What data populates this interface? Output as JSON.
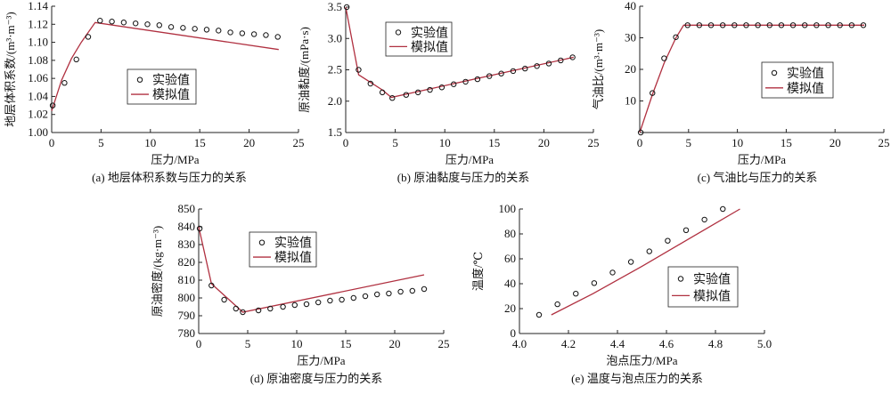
{
  "colors": {
    "sim": "#b03040",
    "exp": "#111111",
    "axis": "#222222"
  },
  "legend_labels": {
    "exp": "实验值",
    "sim": "模拟值"
  },
  "chart_data": [
    {
      "type": "line",
      "caption": "(a) 地层体积系数与压力的关系",
      "xlabel": "压力/MPa",
      "ylabel": "地层体积系数/(m³·m⁻³)",
      "xlim": [
        0,
        25
      ],
      "ylim": [
        1.0,
        1.14
      ],
      "xticks": [
        "0",
        "5",
        "10",
        "15",
        "20",
        "25"
      ],
      "yticks": [
        "1.00",
        "1.02",
        "1.04",
        "1.06",
        "1.08",
        "1.10",
        "1.12",
        "1.14"
      ],
      "legend": "center",
      "series": [
        {
          "name": "实验值",
          "kind": "scatter",
          "x": [
            0.1,
            1.3,
            2.5,
            3.7,
            4.9,
            6.1,
            7.3,
            8.5,
            9.7,
            10.9,
            12.1,
            13.3,
            14.5,
            15.7,
            16.9,
            18.1,
            19.3,
            20.5,
            21.7,
            22.9
          ],
          "y": [
            1.03,
            1.055,
            1.081,
            1.106,
            1.124,
            1.123,
            1.122,
            1.121,
            1.12,
            1.119,
            1.117,
            1.116,
            1.115,
            1.114,
            1.113,
            1.111,
            1.11,
            1.109,
            1.108,
            1.106
          ]
        },
        {
          "name": "模拟值",
          "kind": "line",
          "x": [
            0,
            1,
            2,
            3,
            4.4,
            23
          ],
          "y": [
            1.024,
            1.058,
            1.082,
            1.1,
            1.122,
            1.092
          ]
        }
      ]
    },
    {
      "type": "line",
      "caption": "(b) 原油黏度与压力的关系",
      "xlabel": "压力/MPa",
      "ylabel": "原油黏度/(mPa·s)",
      "xlim": [
        0,
        25
      ],
      "ylim": [
        1.5,
        3.5
      ],
      "xticks": [
        "0",
        "5",
        "10",
        "15",
        "20",
        "25"
      ],
      "yticks": [
        "1.5",
        "2.0",
        "2.5",
        "3.0",
        "3.5"
      ],
      "legend": "upper-left",
      "series": [
        {
          "name": "实验值",
          "kind": "scatter",
          "x": [
            0.1,
            1.3,
            2.5,
            3.7,
            4.7,
            6.1,
            7.3,
            8.5,
            9.7,
            10.9,
            12.1,
            13.3,
            14.5,
            15.7,
            16.9,
            18.1,
            19.3,
            20.5,
            21.7,
            22.9
          ],
          "y": [
            3.5,
            2.5,
            2.28,
            2.14,
            2.05,
            2.1,
            2.14,
            2.18,
            2.22,
            2.27,
            2.31,
            2.35,
            2.4,
            2.44,
            2.48,
            2.52,
            2.56,
            2.6,
            2.65,
            2.7
          ]
        },
        {
          "name": "模拟值",
          "kind": "line",
          "x": [
            0,
            1.3,
            2.5,
            3.7,
            4.6,
            23
          ],
          "y": [
            3.5,
            2.42,
            2.3,
            2.18,
            2.06,
            2.7
          ]
        }
      ]
    },
    {
      "type": "line",
      "caption": "(c) 气油比与压力的关系",
      "xlabel": "压力/MPa",
      "ylabel": "气油比/(m³·m⁻³)",
      "xlim": [
        0,
        25
      ],
      "ylim": [
        0,
        40
      ],
      "xticks": [
        "0",
        "5",
        "10",
        "15",
        "20",
        "25"
      ],
      "yticks": [
        "",
        "10",
        "20",
        "30",
        "40"
      ],
      "legend": "center-right",
      "series": [
        {
          "name": "实验值",
          "kind": "scatter",
          "x": [
            0.1,
            1.3,
            2.5,
            3.7,
            4.9,
            6.1,
            7.3,
            8.5,
            9.7,
            10.9,
            12.1,
            13.3,
            14.5,
            15.7,
            16.9,
            18.1,
            19.3,
            20.5,
            21.7,
            22.9
          ],
          "y": [
            0,
            12.5,
            23.5,
            30.2,
            34,
            34,
            34,
            34,
            34,
            34,
            34,
            34,
            34,
            34,
            34,
            34,
            34,
            34,
            34,
            34
          ]
        },
        {
          "name": "模拟值",
          "kind": "line",
          "x": [
            0,
            1.3,
            2.5,
            3.7,
            4.5,
            23
          ],
          "y": [
            0,
            12,
            22,
            30,
            34,
            34
          ]
        }
      ]
    },
    {
      "type": "line",
      "caption": "(d) 原油密度与压力的关系",
      "xlabel": "压力/MPa",
      "ylabel": "原油密度/(kg·m⁻³)",
      "xlim": [
        0,
        25
      ],
      "ylim": [
        780,
        850
      ],
      "xticks": [
        "0",
        "5",
        "10",
        "15",
        "20",
        "25"
      ],
      "yticks": [
        "780",
        "790",
        "800",
        "810",
        "820",
        "830",
        "840",
        "850"
      ],
      "legend": "upper-center",
      "series": [
        {
          "name": "实验值",
          "kind": "scatter",
          "x": [
            0.1,
            1.3,
            2.6,
            3.8,
            4.5,
            6.1,
            7.3,
            8.6,
            9.8,
            11.0,
            12.2,
            13.4,
            14.6,
            15.8,
            17.0,
            18.2,
            19.4,
            20.6,
            21.8,
            23.0
          ],
          "y": [
            839,
            807,
            799,
            794,
            792,
            793,
            794,
            795,
            796,
            796.5,
            797.5,
            798.5,
            799,
            800,
            801,
            802,
            802.5,
            803.5,
            804,
            805
          ]
        },
        {
          "name": "模拟值",
          "kind": "line",
          "x": [
            0,
            1.3,
            2.5,
            4.5,
            23
          ],
          "y": [
            840,
            808,
            802,
            792,
            813
          ]
        }
      ]
    },
    {
      "type": "line",
      "caption": "(e) 温度与泡点压力的关系",
      "xlabel": "泡点压力/MPa",
      "ylabel": "温度/℃",
      "xlim": [
        4.0,
        5.0
      ],
      "ylim": [
        0,
        100
      ],
      "xticks": [
        "4.0",
        "4.2",
        "4.4",
        "4.6",
        "4.8",
        "5.0"
      ],
      "yticks": [
        "0",
        "20",
        "40",
        "60",
        "80",
        "100"
      ],
      "legend": "center-right",
      "series": [
        {
          "name": "实验值",
          "kind": "scatter",
          "x": [
            4.08,
            4.155,
            4.23,
            4.305,
            4.38,
            4.455,
            4.53,
            4.605,
            4.68,
            4.755,
            4.83
          ],
          "y": [
            15,
            23.5,
            32,
            40.5,
            49,
            57.5,
            66,
            74.5,
            83,
            91.5,
            100
          ]
        },
        {
          "name": "模拟值",
          "kind": "line",
          "x": [
            4.13,
            4.3,
            4.5,
            4.7,
            4.9
          ],
          "y": [
            15,
            32,
            54,
            77,
            100
          ]
        }
      ]
    }
  ]
}
